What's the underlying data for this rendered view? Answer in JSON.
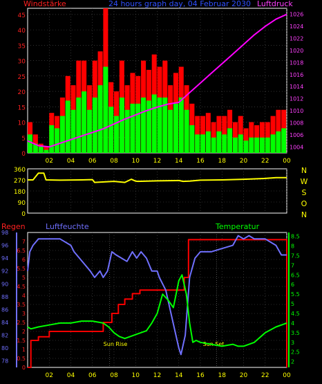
{
  "chart_data": [
    {
      "type": "bar",
      "title": "24 hours graph day, 04 Februar 2030",
      "left_label": "Windstärke",
      "right_label": "Luftdruck",
      "x_ticks": [
        "02",
        "04",
        "06",
        "08",
        "10",
        "12",
        "14",
        "16",
        "18",
        "20",
        "22",
        "00"
      ],
      "y_ticks": [
        "0",
        "5",
        "10",
        "15",
        "20",
        "25",
        "30",
        "35",
        "40",
        "45"
      ],
      "y2_ticks": [
        "1004",
        "1006",
        "1008",
        "1010",
        "1012",
        "1014",
        "1016",
        "1018",
        "1020",
        "1022",
        "1024",
        "1026"
      ],
      "ylim": [
        0,
        47
      ],
      "y2lim": [
        1003,
        1027
      ],
      "series": [
        {
          "name": "Windstärke",
          "color": "#ff0000",
          "x": [
            0,
            0.5,
            1,
            1.5,
            2,
            2.5,
            3,
            3.5,
            4,
            4.5,
            5,
            5.5,
            6,
            6.5,
            7,
            7.5,
            8,
            8.5,
            9,
            9.5,
            10,
            10.5,
            11,
            11.5,
            12,
            12.5,
            13,
            13.5,
            14,
            14.5,
            15,
            15.5,
            16,
            16.5,
            17,
            17.5,
            18,
            18.5,
            19,
            19.5,
            20,
            20.5,
            21,
            21.5,
            22,
            22.5,
            23,
            23.5
          ],
          "values": [
            10,
            6,
            3,
            2,
            13,
            12,
            18,
            25,
            22,
            30,
            30,
            22,
            30,
            33,
            47,
            23,
            20,
            30,
            22,
            26,
            25,
            30,
            27,
            32,
            28,
            30,
            22,
            26,
            28,
            22,
            16,
            12,
            12,
            13,
            10,
            12,
            12,
            14,
            10,
            12,
            8,
            10,
            9,
            10,
            10,
            12,
            14,
            14
          ]
        },
        {
          "name": "Wind gust",
          "color": "#00ff00",
          "x": [
            0,
            0.5,
            1,
            1.5,
            2,
            2.5,
            3,
            3.5,
            4,
            4.5,
            5,
            5.5,
            6,
            6.5,
            7,
            7.5,
            8,
            8.5,
            9,
            9.5,
            10,
            10.5,
            11,
            11.5,
            12,
            12.5,
            13,
            13.5,
            14,
            14.5,
            15,
            15.5,
            16,
            16.5,
            17,
            17.5,
            18,
            18.5,
            19,
            19.5,
            20,
            20.5,
            21,
            21.5,
            22,
            22.5,
            23,
            23.5
          ],
          "values": [
            6,
            3,
            2,
            1,
            9,
            8,
            12,
            17,
            14,
            18,
            20,
            14,
            18,
            22,
            28,
            15,
            12,
            18,
            14,
            16,
            16,
            18,
            17,
            19,
            18,
            18,
            14,
            16,
            18,
            14,
            9,
            6,
            6,
            7,
            5,
            7,
            6,
            8,
            5,
            6,
            4,
            5,
            5,
            5,
            5,
            6,
            7,
            8
          ]
        },
        {
          "name": "Luftdruck",
          "color": "#ff00ff",
          "x": [
            0,
            1,
            2,
            3,
            4,
            5,
            6,
            7,
            8,
            9,
            10,
            11,
            12,
            13,
            14,
            15,
            16,
            17,
            18,
            19,
            20,
            21,
            22,
            23,
            24
          ],
          "values": [
            1005,
            1004.2,
            1004,
            1004.6,
            1005.2,
            1005.8,
            1006.4,
            1007,
            1007.8,
            1008.6,
            1009.3,
            1010,
            1010.6,
            1011.1,
            1011.4,
            1013,
            1014.6,
            1016.2,
            1017.8,
            1019.4,
            1021,
            1022.6,
            1024,
            1025.2,
            1026
          ]
        }
      ]
    },
    {
      "type": "line",
      "title": "",
      "x_ticks": [
        "02",
        "04",
        "06",
        "08",
        "10",
        "12",
        "14",
        "16",
        "18",
        "20",
        "22",
        "00"
      ],
      "y_ticks": [
        "0",
        "90",
        "180",
        "270",
        "360"
      ],
      "right_labels": [
        "N",
        "W",
        "S",
        "O",
        "N"
      ],
      "ylim": [
        0,
        360
      ],
      "series": [
        {
          "name": "wind direction",
          "color": "#ffff00",
          "x": [
            0,
            0.5,
            1,
            1.5,
            1.7,
            3,
            5,
            6,
            6.2,
            8,
            9,
            9.6,
            10,
            10.2,
            12,
            14,
            14.4,
            15,
            16,
            18,
            20,
            22,
            23,
            24
          ],
          "values": [
            270,
            270,
            325,
            325,
            270,
            268,
            270,
            272,
            250,
            258,
            250,
            275,
            260,
            258,
            262,
            265,
            258,
            260,
            268,
            270,
            275,
            282,
            288,
            288
          ]
        }
      ]
    },
    {
      "type": "line",
      "title": "",
      "labels": {
        "rain": "Regen",
        "humidity": "Luftfeuchte",
        "temperature": "Temperatur",
        "sunrise": "Sun Rise",
        "sunset": "Sun Set"
      },
      "x_ticks": [
        "02",
        "04",
        "06",
        "08",
        "10",
        "12",
        "14",
        "16",
        "18",
        "20",
        "22",
        "00"
      ],
      "humidity_ticks": [
        "78",
        "80",
        "82",
        "84",
        "86",
        "88",
        "90",
        "92",
        "94",
        "96",
        "98"
      ],
      "rain_ticks": [
        "0",
        "0.5",
        "1",
        "1.5",
        "2",
        "2.5",
        "3",
        "3.5",
        "4",
        "4.5",
        "5",
        "5.5",
        "6",
        "6.5",
        "7"
      ],
      "temp_ticks": [
        "2",
        "2.5",
        "3",
        "3.5",
        "4",
        "4.5",
        "5",
        "5.5",
        "6",
        "6.5",
        "7",
        "7.5",
        "8",
        "8.5"
      ],
      "humidity_lim": [
        77,
        98
      ],
      "rain_lim": [
        0,
        7.5
      ],
      "temp_lim": [
        1.7,
        8.7
      ],
      "sunrise_hour": 7.6,
      "sunset_hour": 17.5,
      "series": [
        {
          "name": "Luftfeuchte",
          "color": "#7070ff",
          "x": [
            0,
            0.2,
            0.5,
            1,
            1.5,
            3,
            4,
            4.3,
            4.8,
            5.3,
            5.8,
            6.2,
            6.7,
            7,
            7.4,
            7.8,
            8.2,
            8.7,
            9.2,
            9.7,
            10.1,
            10.5,
            11,
            11.5,
            12,
            12.2,
            12.8,
            13.2,
            13.6,
            14,
            14.2,
            14.6,
            15,
            15.5,
            16,
            16.5,
            17,
            18,
            19,
            19.5,
            20,
            20.5,
            21,
            22,
            23,
            23.5,
            24
          ],
          "values": [
            92,
            95,
            96,
            97,
            97,
            97,
            96,
            95,
            94,
            93,
            92,
            91,
            92,
            91,
            92,
            95,
            94.5,
            94,
            93.5,
            95,
            94,
            95,
            94,
            92,
            92,
            91,
            89,
            86,
            83,
            80,
            79,
            82,
            91,
            94,
            95,
            95,
            95,
            95.5,
            96,
            97.5,
            97,
            97.5,
            97,
            97,
            96,
            94.5,
            94.5
          ]
        },
        {
          "name": "Regen",
          "color": "#ff0000",
          "x": [
            0,
            0.3,
            0.3,
            1,
            1,
            2,
            2,
            7,
            7,
            7.8,
            7.8,
            8.4,
            8.4,
            9,
            9,
            9.7,
            9.7,
            10.4,
            10.4,
            14.5,
            14.5,
            14.9,
            14.9,
            24,
            24
          ],
          "values": [
            0,
            0,
            1.5,
            1.5,
            1.7,
            1.7,
            2,
            2,
            2.5,
            2.5,
            3,
            3,
            3.5,
            3.5,
            3.8,
            3.8,
            4.1,
            4.1,
            4.3,
            4.3,
            5,
            5,
            7.1,
            7.1,
            0
          ]
        },
        {
          "name": "Temperatur",
          "color": "#00ff00",
          "x": [
            0,
            0.3,
            1,
            2,
            3,
            4,
            5,
            6,
            7,
            7.5,
            8,
            8.5,
            9,
            9.5,
            10,
            11,
            11.5,
            12,
            12.5,
            13,
            13.5,
            14,
            14.3,
            14.7,
            15,
            15.3,
            15.6,
            16,
            17,
            18,
            19,
            19.5,
            20,
            21,
            22,
            23,
            24
          ],
          "values": [
            3.8,
            3.7,
            3.8,
            3.9,
            4,
            4,
            4.1,
            4.1,
            4,
            3.8,
            3.5,
            3.3,
            3.2,
            3.3,
            3.4,
            3.6,
            4,
            4.5,
            5.5,
            5.2,
            4.8,
            6.2,
            6.5,
            5.5,
            4,
            3,
            3.1,
            3,
            2.9,
            2.8,
            2.9,
            2.8,
            2.8,
            3,
            3.5,
            3.8,
            4
          ]
        }
      ]
    }
  ]
}
